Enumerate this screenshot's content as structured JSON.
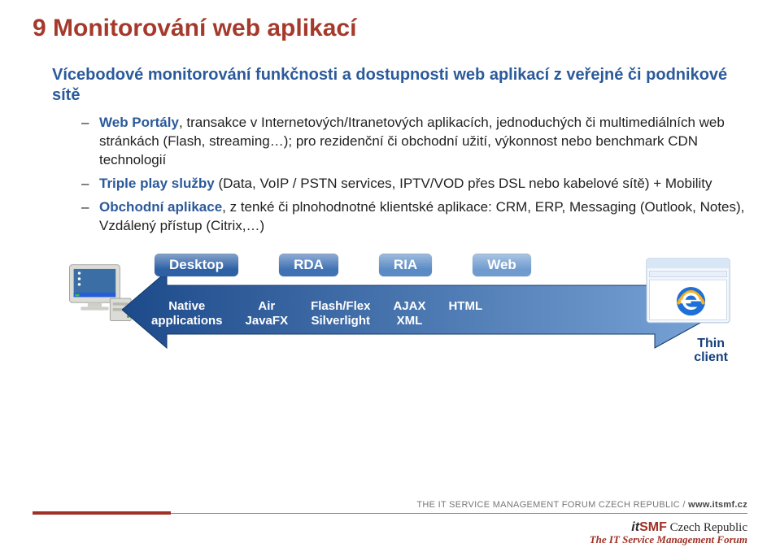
{
  "title": {
    "text": "9 Monitorování web aplikací",
    "color": "#a53a2c",
    "fontsize": 30
  },
  "subtitle": {
    "text": "Vícebodové  monitorování funkčnosti a dostupnosti web aplikací z veřejné či podnikové sítě",
    "color": "#2b5a9b",
    "fontsize": 20
  },
  "bullets": [
    {
      "keyword": "Web Portály",
      "keyword_color": "#2b5a9b",
      "rest": ", transakce v Internetových/Itranetových aplikacích, jednoduchých či multimediálních web stránkách (Flash, streaming…); pro rezidenční či obchodní užití, výkonnost nebo benchmark CDN technologií"
    },
    {
      "keyword": "Triple play služby",
      "keyword_color": "#2b5a9b",
      "rest": " (Data, VoIP / PSTN services, IPTV/VOD přes DSL nebo kabelové sítě) + Mobility"
    },
    {
      "keyword": "Obchodní aplikace",
      "keyword_color": "#2b5a9b",
      "rest": ", z tenké či plnohodnotné klientské aplikace: CRM, ERP, Messaging (Outlook, Notes), Vzdálený přístup (Citrix,…)"
    }
  ],
  "arrow": {
    "gradient_left": "#1d4a8a",
    "gradient_right": "#7aa5d8",
    "stroke": "#123869"
  },
  "pills": [
    {
      "label": "Desktop",
      "bg": "#2d60a5"
    },
    {
      "label": "RDA",
      "bg": "#3f71b4"
    },
    {
      "label": "RIA",
      "bg": "#5a8bc5"
    },
    {
      "label": "Web",
      "bg": "#6f9bce"
    }
  ],
  "techs": [
    {
      "line1": "Native",
      "line2": "applications"
    },
    {
      "line1": "Air",
      "line2": "JavaFX"
    },
    {
      "line1": "Flash/Flex",
      "line2": "Silverlight"
    },
    {
      "line1": "AJAX",
      "line2": "XML"
    },
    {
      "line1": "HTML",
      "line2": ""
    }
  ],
  "thin_client": {
    "line1": "Thin",
    "line2": "client",
    "color": "#17407c"
  },
  "footer": {
    "org": "THE IT SERVICE MANAGEMENT FORUM CZECH REPUBLIC  /  ",
    "url": "www.itsmf.cz",
    "logo_it": "it",
    "logo_smf": "SMF",
    "logo_cz": " Czech Republic",
    "logo_sub": "The IT Service Management Forum",
    "bar_red": "#a03024"
  },
  "monitor": {
    "case_color": "#dcdcd6",
    "screen_bg": "#3a6ea5",
    "taskbar": "#245edc",
    "desktopicons": "#ffffff"
  },
  "browser": {
    "frame": "#d8e6f5",
    "stroke": "#9fb9d6",
    "ie_blue": "#1f6fd6",
    "ie_gold": "#f5b324"
  }
}
